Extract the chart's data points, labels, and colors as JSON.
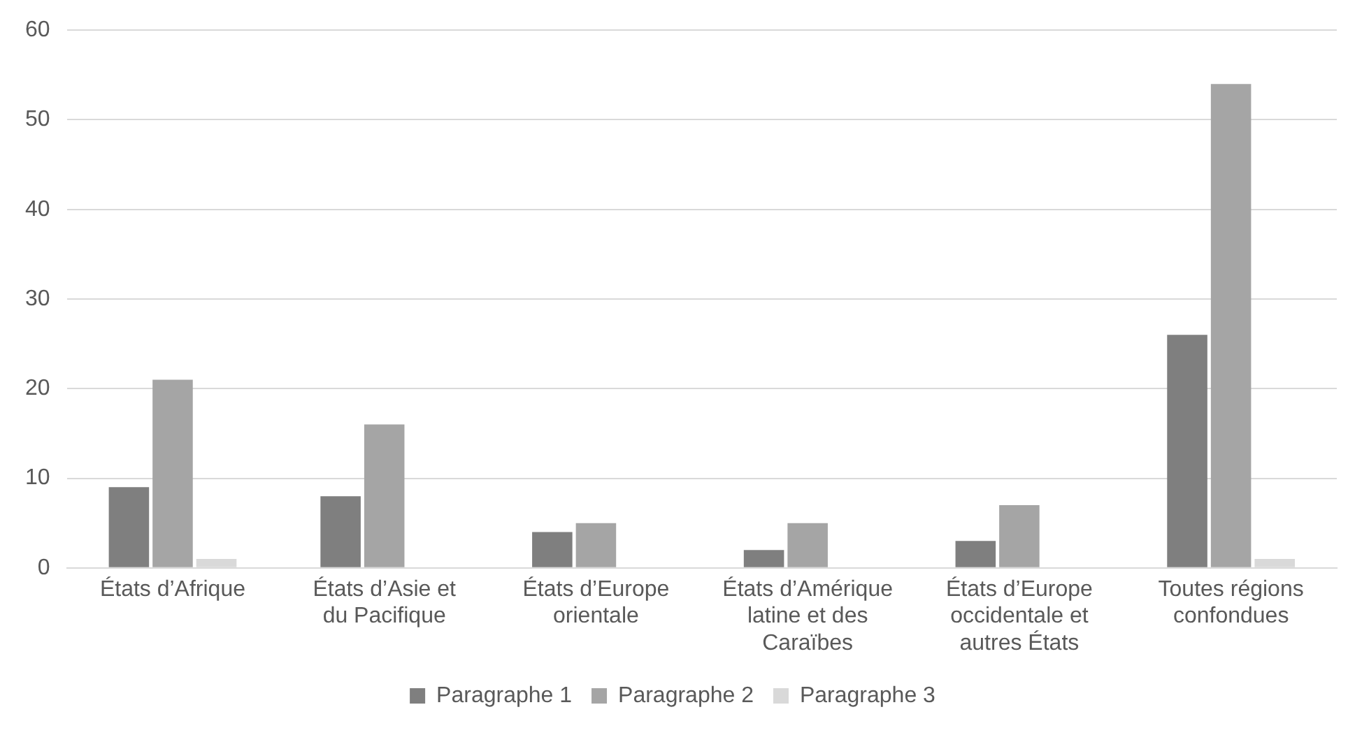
{
  "chart_data": {
    "type": "bar",
    "categories": [
      "États d’Afrique",
      "États d’Asie et du Pacifique",
      "États d’Europe orientale",
      "États d’Amérique latine et des Caraïbes",
      "États d’Europe occidentale et autres États",
      "Toutes régions confondues"
    ],
    "series": [
      {
        "name": "Paragraphe 1",
        "color": "#7f7f7f",
        "values": [
          9,
          8,
          4,
          2,
          3,
          26
        ]
      },
      {
        "name": "Paragraphe 2",
        "color": "#a5a5a5",
        "values": [
          21,
          16,
          5,
          5,
          7,
          54
        ]
      },
      {
        "name": "Paragraphe 3",
        "color": "#d9d9d9",
        "values": [
          1,
          0,
          0,
          0,
          0,
          1
        ]
      }
    ],
    "ylim": [
      0,
      60
    ],
    "yticks": [
      0,
      10,
      20,
      30,
      40,
      50,
      60
    ],
    "grid": "y",
    "legend": "bottom"
  }
}
